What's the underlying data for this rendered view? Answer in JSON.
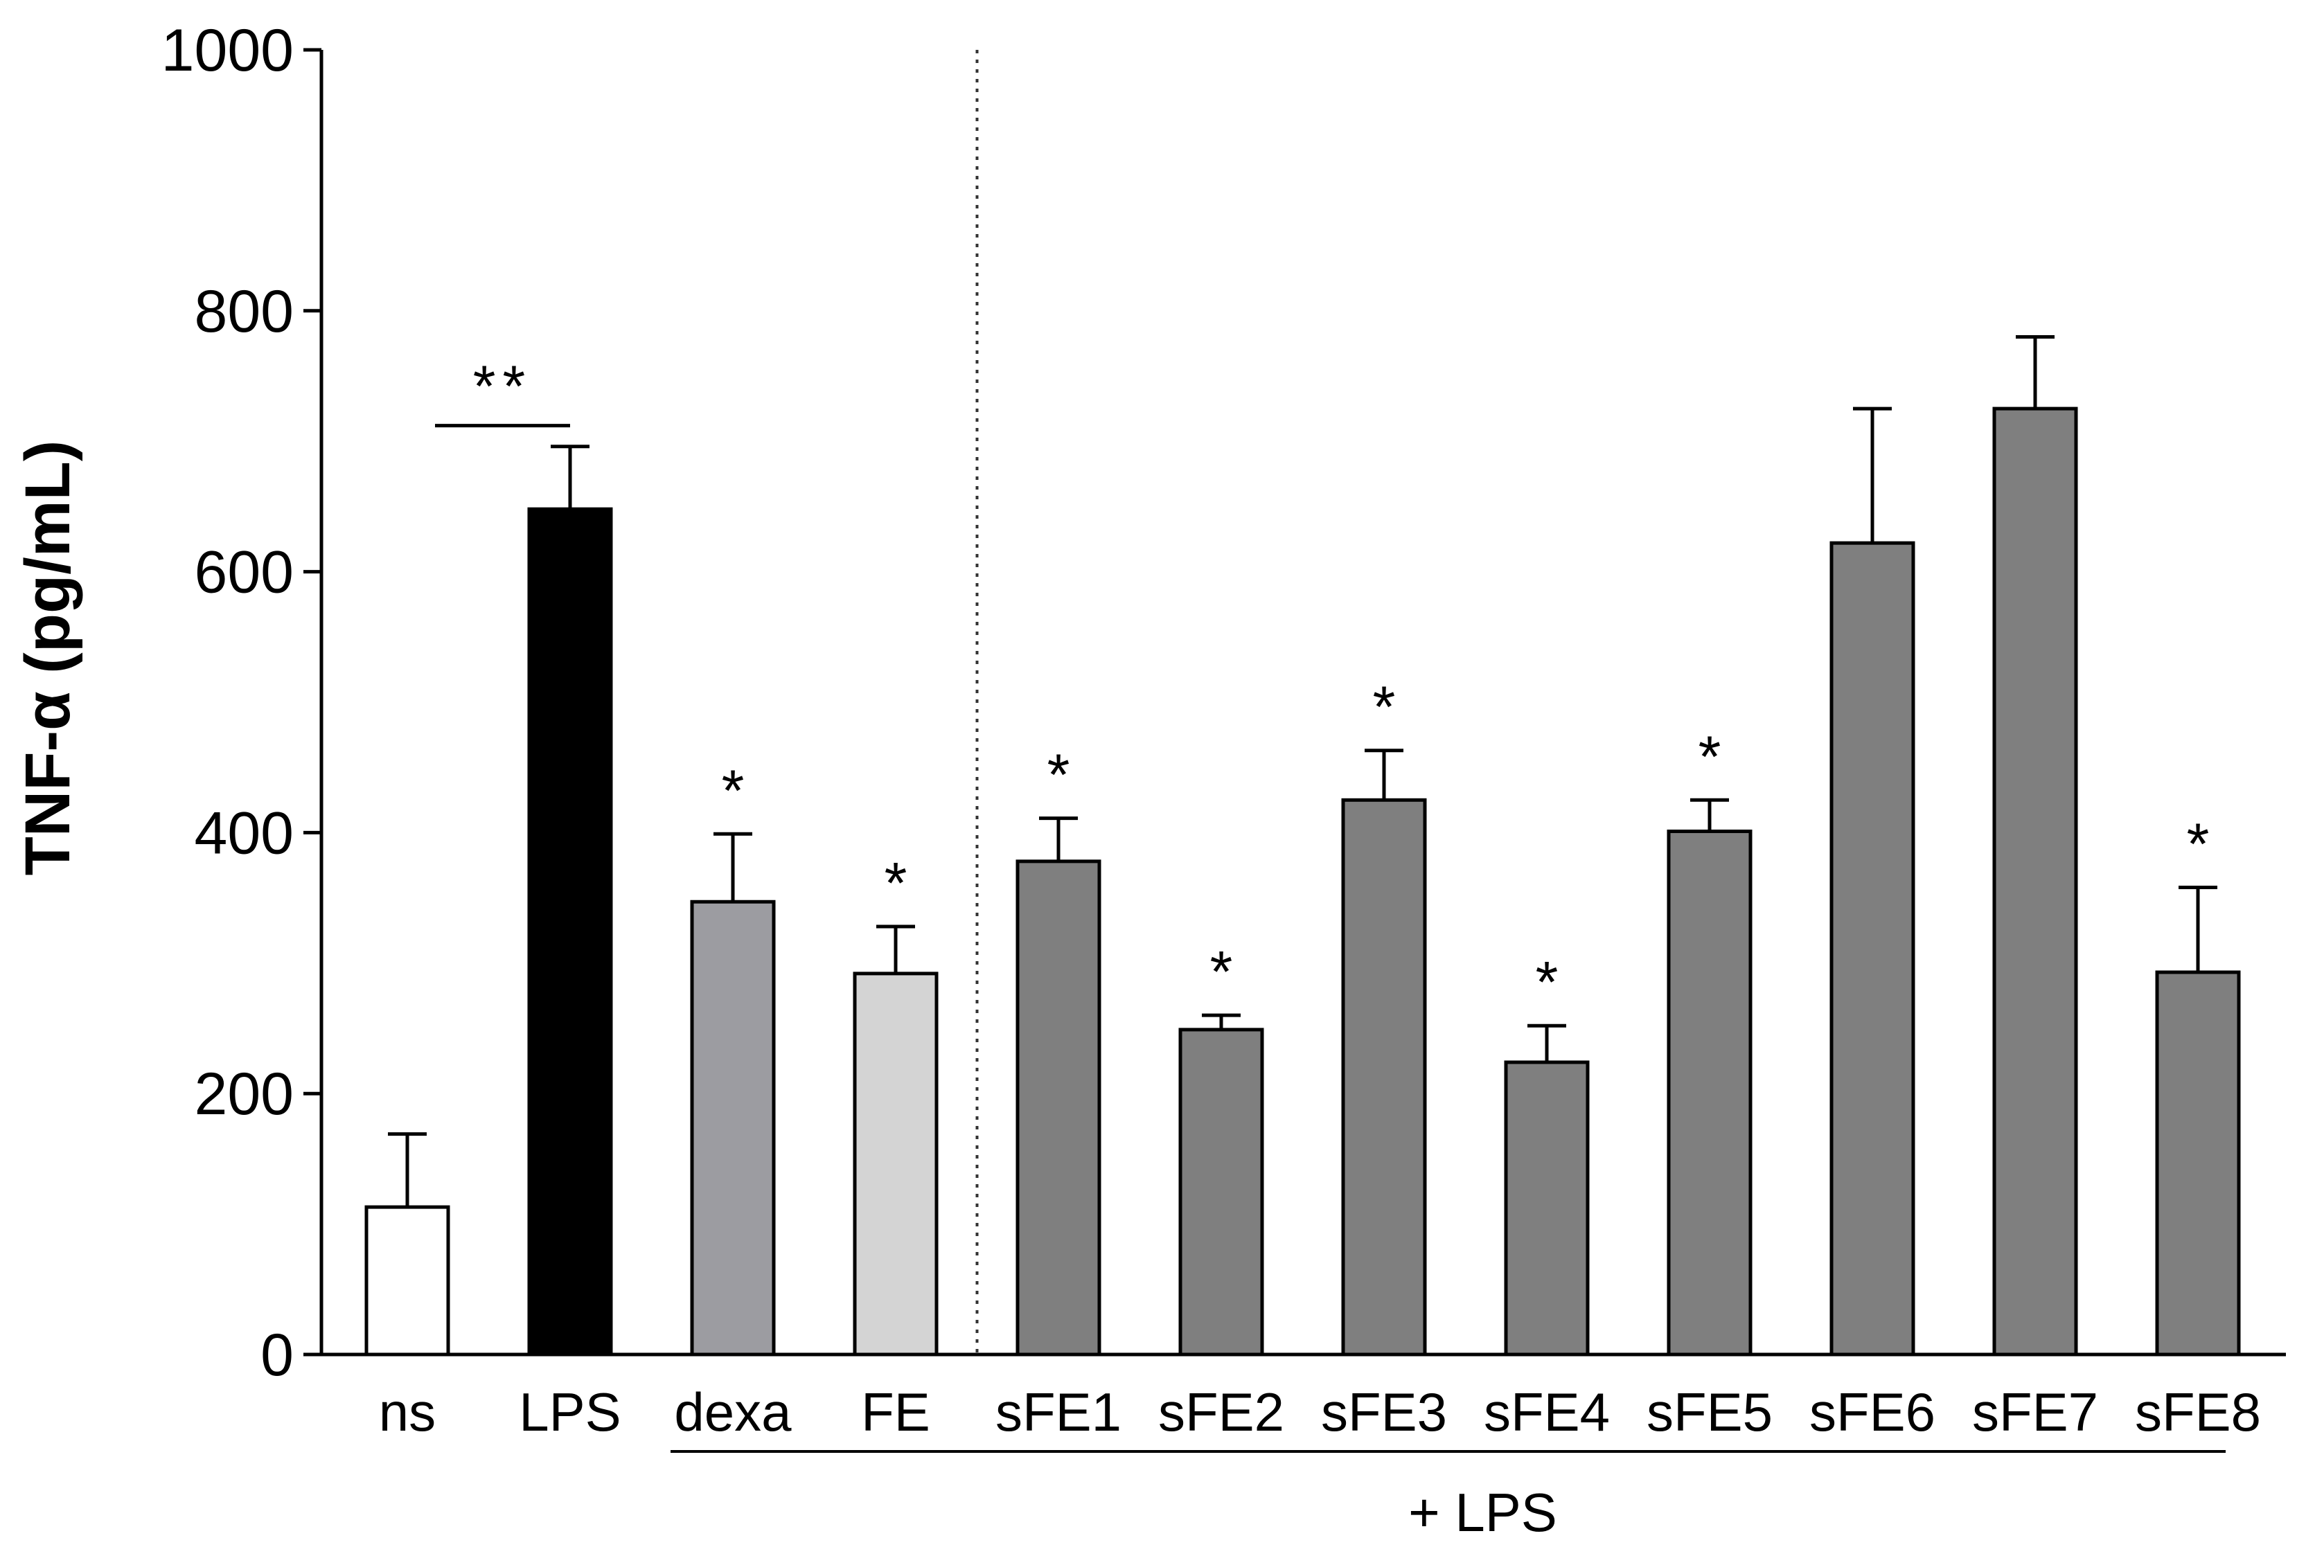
{
  "chart_data": {
    "type": "bar",
    "title": "",
    "xlabel": "",
    "ylabel": "TNF-α (pg/mL)",
    "ylim": [
      0,
      1000
    ],
    "yticks": [
      "0",
      "200",
      "400",
      "600",
      "800",
      "1000"
    ],
    "categories": [
      "ns",
      "LPS",
      "dexa",
      "FE",
      "sFE1",
      "sFE2",
      "sFE3",
      "sFE4",
      "sFE5",
      "sFE6",
      "sFE7",
      "sFE8"
    ],
    "values": [
      113,
      648,
      347,
      292,
      378,
      249,
      425,
      224,
      401,
      622,
      725,
      293
    ],
    "errors": [
      56,
      48,
      52,
      36,
      33,
      11,
      38,
      28,
      24,
      103,
      55,
      65
    ],
    "bar_colors": [
      "#ffffff",
      "#000000",
      "#9c9ca1",
      "#d4d4d4",
      "#7f7f7f",
      "#7f7f7f",
      "#7f7f7f",
      "#7f7f7f",
      "#7f7f7f",
      "#7f7f7f",
      "#7f7f7f",
      "#7f7f7f"
    ],
    "significance": [
      "",
      "",
      "*",
      "*",
      "*",
      "*",
      "*",
      "*",
      "*",
      "",
      "",
      "*"
    ],
    "bracket": {
      "from": "ns",
      "to": "LPS",
      "label": "**"
    },
    "group_annotation": {
      "label": "+ LPS",
      "from": "dexa",
      "to": "sFE8"
    },
    "separator_after": "FE",
    "grid": false
  }
}
